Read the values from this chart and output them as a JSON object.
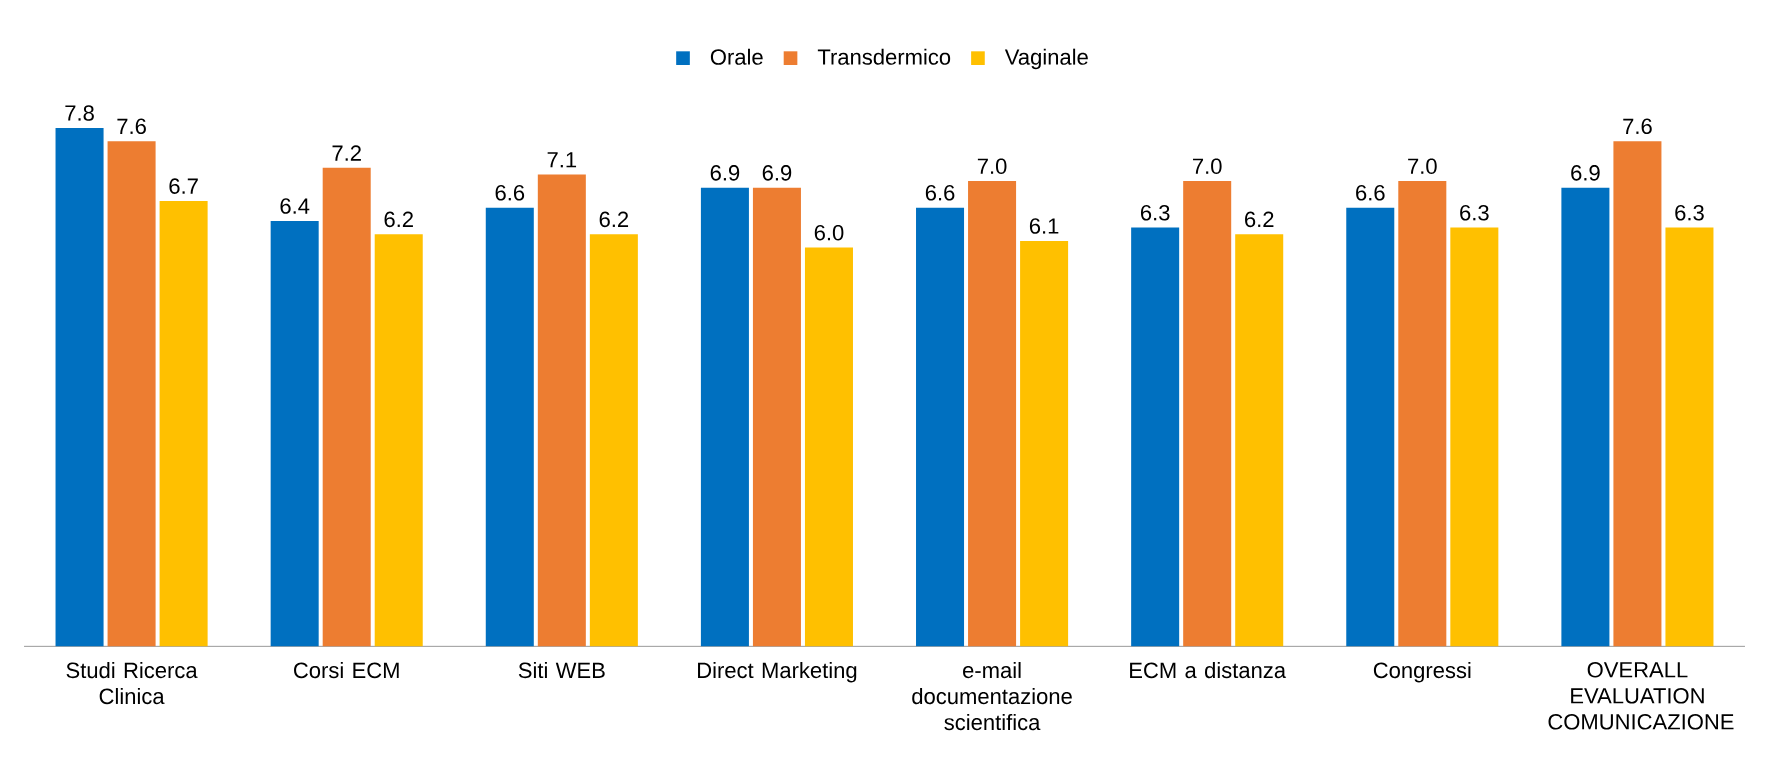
{
  "chart_data": {
    "type": "bar",
    "categories": [
      "Studi Ricerca Clinica",
      "Corsi ECM",
      "Siti WEB",
      "Direct Marketing",
      "e-mail documentazione scientifica",
      "ECM a distanza",
      "Congressi",
      "OVERALL EVALUATION COMUNICAZIONE"
    ],
    "series": [
      {
        "name": "Orale",
        "color": "#0070c0",
        "values": [
          7.8,
          6.4,
          6.6,
          6.9,
          6.6,
          6.3,
          6.6,
          6.9
        ],
        "value_labels": [
          "7.8",
          "6.4",
          "6.6",
          "6.9",
          "6.6",
          "6.3",
          "6.6",
          "6.9"
        ]
      },
      {
        "name": "Transdermico",
        "color": "#ed7d31",
        "values": [
          7.6,
          7.2,
          7.1,
          6.9,
          7.0,
          7.0,
          7.0,
          7.6
        ],
        "value_labels": [
          "7.6",
          "7.2",
          "7.1",
          "6.9",
          "7.0",
          "7.0",
          "7.0",
          "7.6"
        ]
      },
      {
        "name": "Vaginale",
        "color": "#ffc000",
        "values": [
          6.7,
          6.2,
          6.2,
          6.0,
          6.1,
          6.2,
          6.3,
          6.3
        ],
        "value_labels": [
          "6.7",
          "6.2",
          "6.2",
          "6.0",
          "6.1",
          "6.2",
          "6.3",
          "6.3"
        ]
      }
    ],
    "legend": "top"
  }
}
